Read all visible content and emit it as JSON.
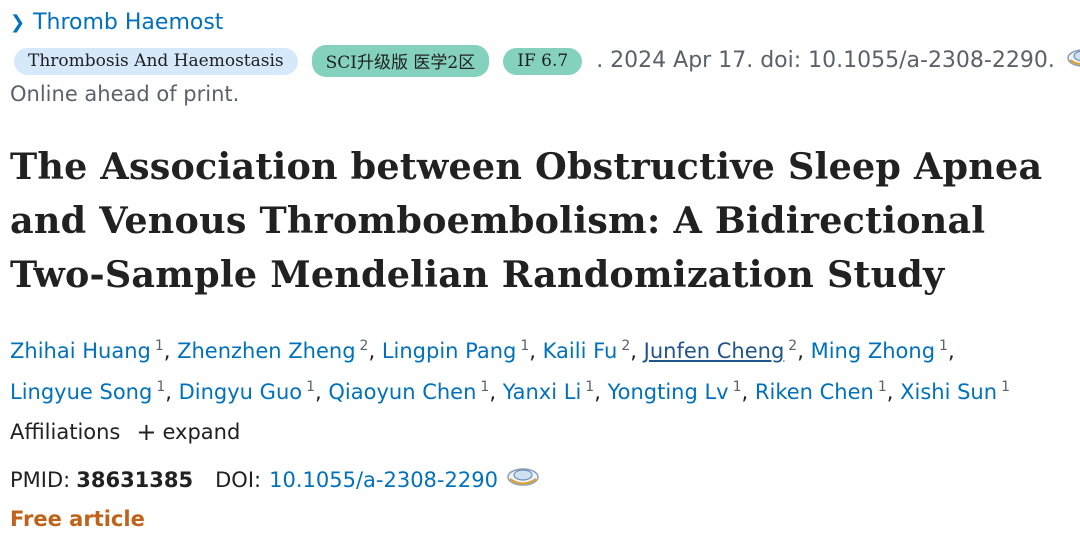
{
  "journal_link": "Thromb Haemost",
  "pills": {
    "journal": "Thrombosis And Haemostasis",
    "sci": "SCI升级版 医学2区",
    "impact": "IF 6.7"
  },
  "citation_text": ". 2024 Apr 17. doi: 10.1055/a-2308-2290.",
  "online_status": "Online ahead of print.",
  "title": "The Association between Obstructive Sleep Apnea and Venous Thromboembolism: A Bidirectional Two-Sample Mendelian Randomization Study",
  "authors": [
    {
      "name": "Zhihai Huang",
      "aff": "1"
    },
    {
      "name": "Zhenzhen Zheng",
      "aff": "2"
    },
    {
      "name": "Lingpin Pang",
      "aff": "1"
    },
    {
      "name": "Kaili Fu",
      "aff": "2"
    },
    {
      "name": "Junfen Cheng",
      "aff": "2"
    },
    {
      "name": "Ming Zhong",
      "aff": "1"
    },
    {
      "name": "Lingyue Song",
      "aff": "1"
    },
    {
      "name": "Dingyu Guo",
      "aff": "1"
    },
    {
      "name": "Qiaoyun Chen",
      "aff": "1"
    },
    {
      "name": "Yanxi Li",
      "aff": "1"
    },
    {
      "name": "Yongting Lv",
      "aff": "1"
    },
    {
      "name": "Riken Chen",
      "aff": "1"
    },
    {
      "name": "Xishi Sun",
      "aff": "1"
    }
  ],
  "affiliations": {
    "label": "Affiliations",
    "expand": "expand"
  },
  "ids": {
    "pmid_label": "PMID:",
    "pmid": "38631385",
    "doi_label": "DOI:",
    "doi": "10.1055/a-2308-2290"
  },
  "free_article": "Free article",
  "colors": {
    "link": "#0071bc",
    "free": "#c0631a",
    "pill_journal": "#d6e9fb",
    "pill_green": "#84d1bd"
  }
}
